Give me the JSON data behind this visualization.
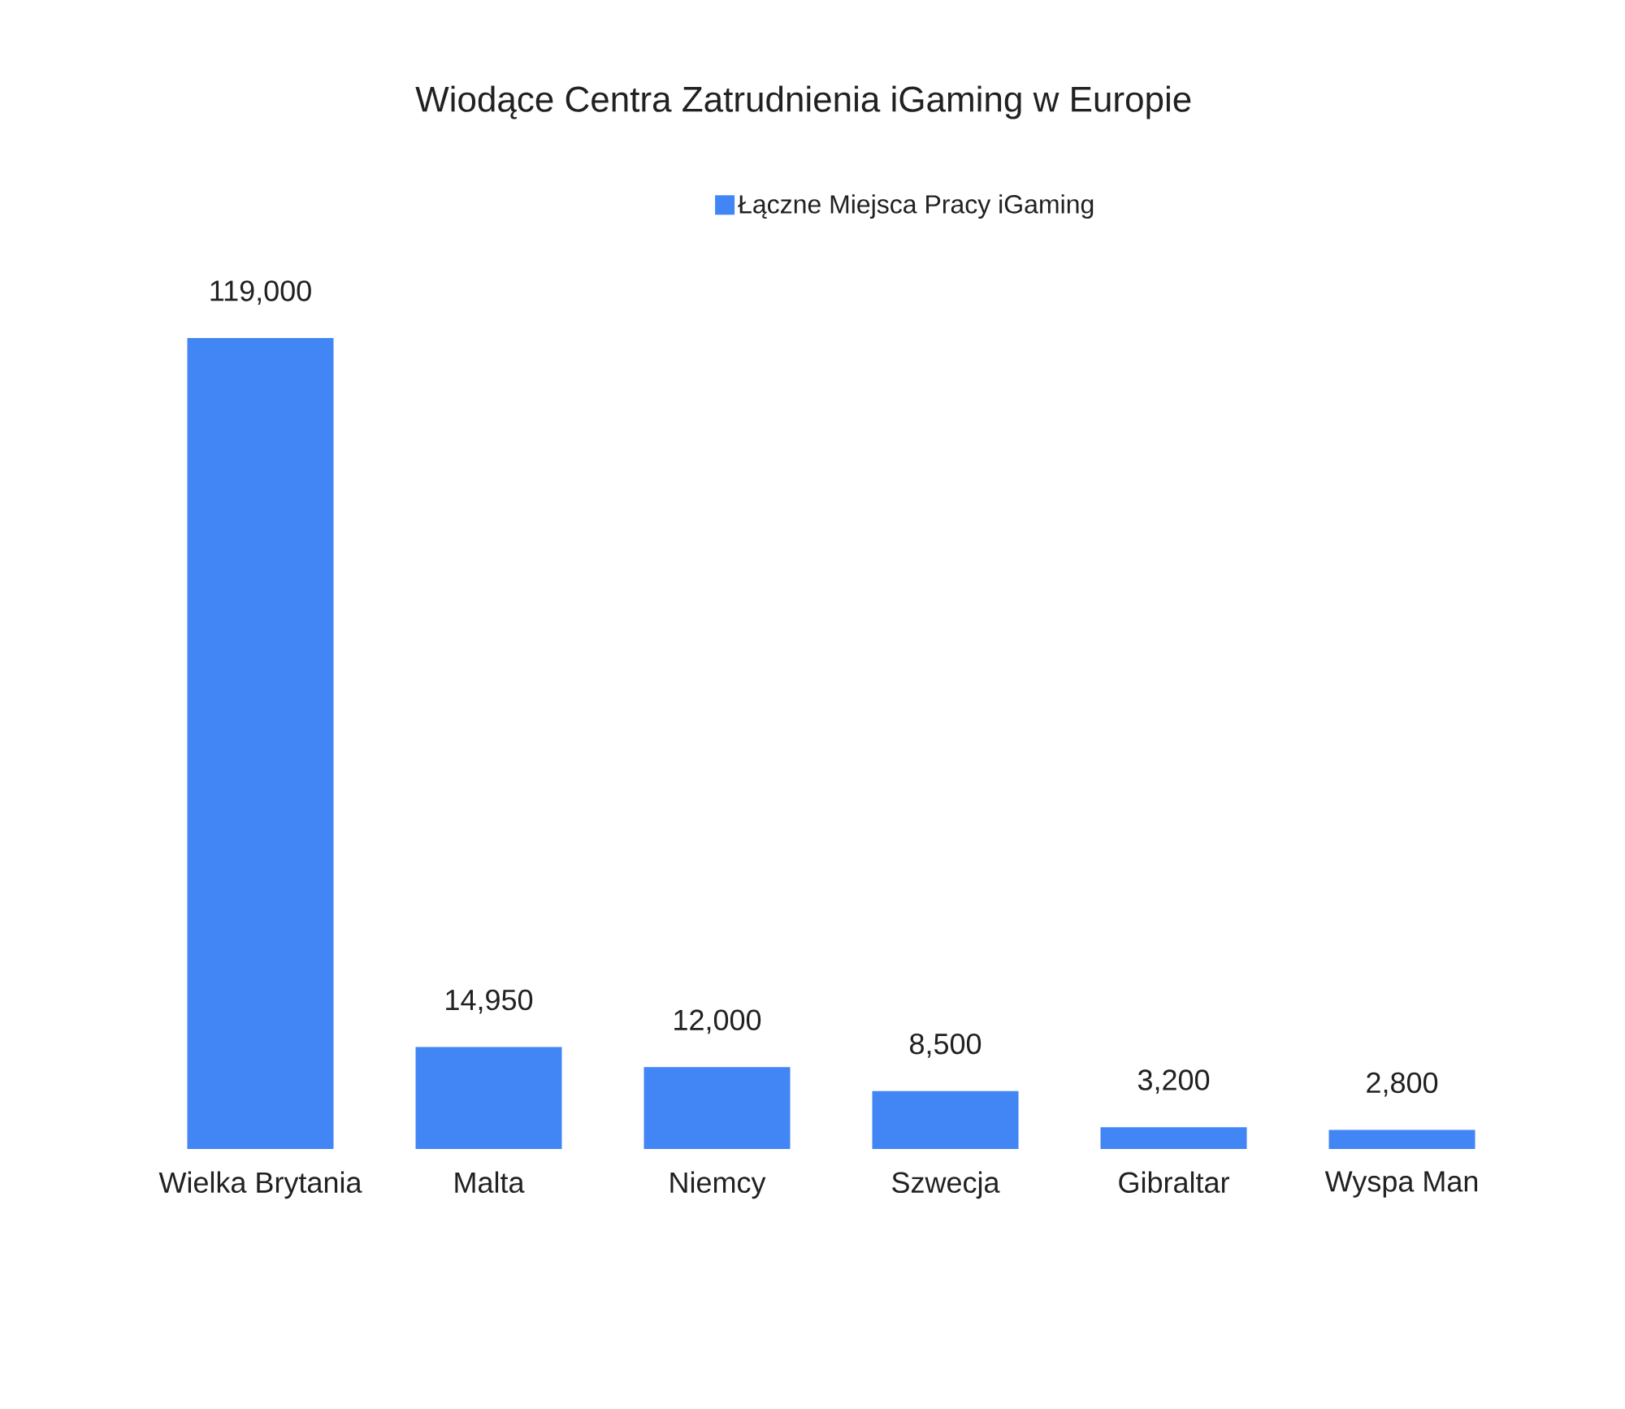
{
  "chart_data": {
    "type": "bar",
    "title": "Wiodące Centra Zatrudnienia iGaming w Europie",
    "categories": [
      "Wielka Brytania",
      "Malta",
      "Niemcy",
      "Szwecja",
      "Gibraltar",
      "Wyspa Man"
    ],
    "series": [
      {
        "name": "Łączne Miejsca Pracy iGaming",
        "color": "#4285f4",
        "values": [
          119000,
          14950,
          12000,
          8500,
          3200,
          2800
        ],
        "value_labels": [
          "119,000",
          "14,950",
          "12,000",
          "8,500",
          "3,200",
          "2,800"
        ]
      }
    ],
    "legend": "top"
  }
}
